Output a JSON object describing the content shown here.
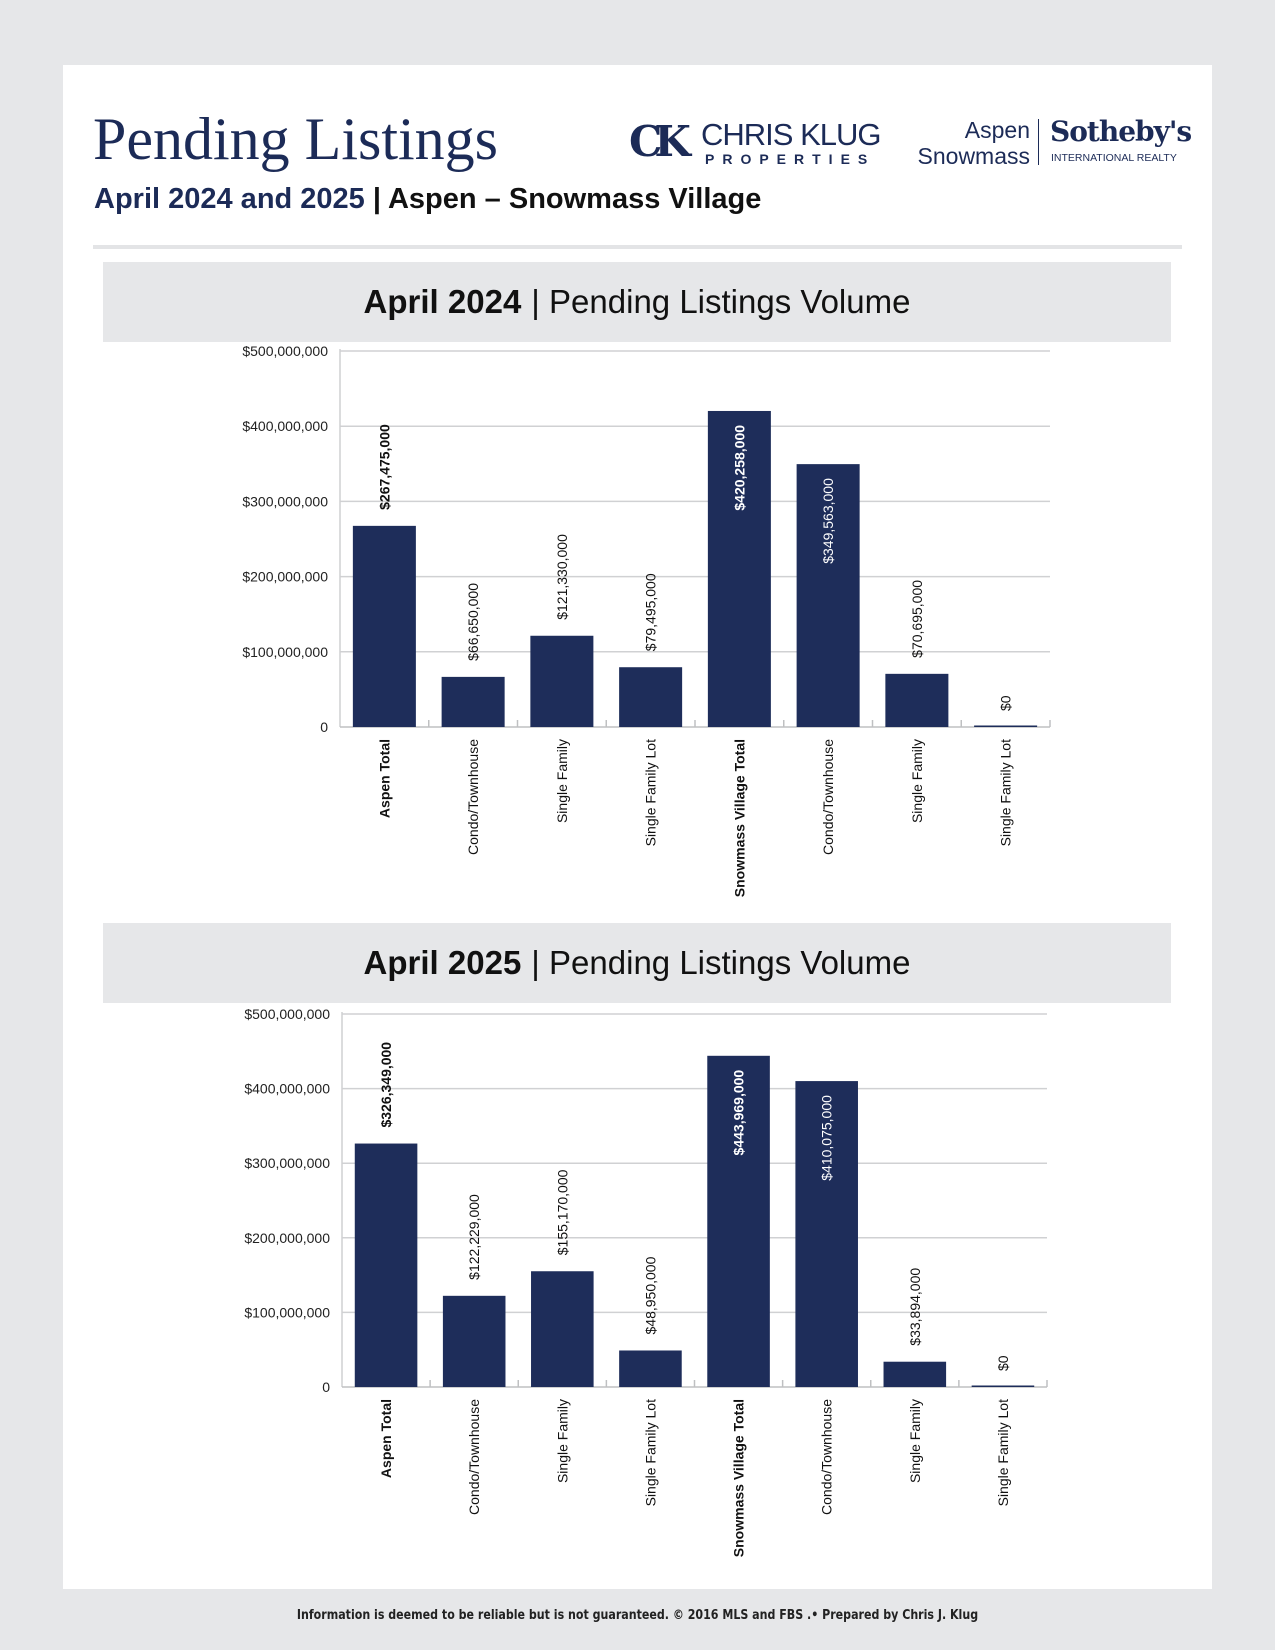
{
  "header": {
    "title": "Pending Listings",
    "subtitle_blue": "April 2024 and 2025",
    "subtitle_sep": " | ",
    "subtitle_rest": "Aspen – Snowmass Village",
    "logo_ck": {
      "mark": "CK",
      "name": "CHRIS KLUG",
      "sub": "PROPERTIES"
    },
    "logo_sothebys": {
      "line1": "Aspen",
      "line2": "Snowmass",
      "name": "Sotheby's",
      "sub": "INTERNATIONAL REALTY"
    }
  },
  "colors": {
    "navy": "#1c2b57",
    "bar": "#1e2d5a",
    "banner": "#e6e7e9"
  },
  "chart_data": [
    {
      "type": "bar",
      "title_bold": "April 2024",
      "title_rest": "| Pending Listings Volume",
      "categories": [
        "Aspen Total",
        "Condo/Townhouse",
        "Single Family",
        "Single Family Lot",
        "Snowmass Village Total",
        "Condo/Townhouse",
        "Single Family",
        "Single Family Lot"
      ],
      "bold_categories": [
        "Aspen Total",
        "Snowmass Village Total"
      ],
      "values": [
        267475000,
        66650000,
        121330000,
        79495000,
        420258000,
        349563000,
        70695000,
        0
      ],
      "data_labels": [
        "$267,475,000",
        "$66,650,000",
        "$121,330,000",
        "$79,495,000",
        "$420,258,000",
        "$349,563,000",
        "$70,695,000",
        "$0"
      ],
      "ylim": [
        0,
        500000000
      ],
      "yticks": [
        "0",
        "$100,000,000",
        "$200,000,000",
        "$300,000,000",
        "$400,000,000",
        "$500,000,000"
      ],
      "grid": true
    },
    {
      "type": "bar",
      "title_bold": "April 2025",
      "title_rest": "| Pending Listings Volume",
      "categories": [
        "Aspen Total",
        "Condo/Townhouse",
        "Single Family",
        "Single Family Lot",
        "Snowmass Village Total",
        "Condo/Townhouse",
        "Single Family",
        "Single Family Lot"
      ],
      "bold_categories": [
        "Aspen Total",
        "Snowmass Village Total"
      ],
      "values": [
        326349000,
        122229000,
        155170000,
        48950000,
        443969000,
        410075000,
        33894000,
        0
      ],
      "data_labels": [
        "$326,349,000",
        "$122,229,000",
        "$155,170,000",
        "$48,950,000",
        "$443,969,000",
        "$410,075,000",
        "$33,894,000",
        "$0"
      ],
      "ylim": [
        0,
        500000000
      ],
      "yticks": [
        "0",
        "$100,000,000",
        "$200,000,000",
        "$300,000,000",
        "$400,000,000",
        "$500,000,000"
      ],
      "grid": true
    }
  ],
  "footer": "Information is deemed to be reliable but is not guaranteed. © 2016 MLS and FBS .• Prepared by Chris J. Klug"
}
